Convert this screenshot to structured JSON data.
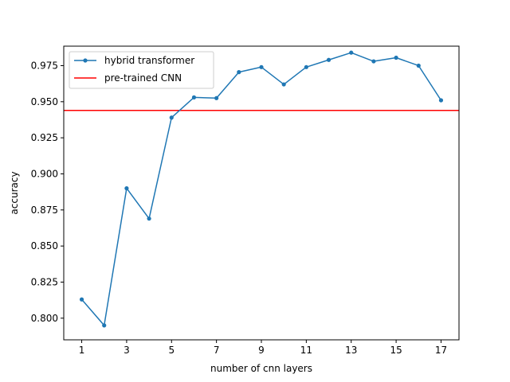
{
  "chart_data": {
    "type": "line",
    "title": "",
    "xlabel": "number of cnn layers",
    "ylabel": "accuracy",
    "xlim": [
      0.2,
      17.8
    ],
    "ylim": [
      0.785,
      0.9885
    ],
    "xticks": [
      1,
      3,
      5,
      7,
      9,
      11,
      13,
      15,
      17
    ],
    "yticks": [
      0.8,
      0.825,
      0.85,
      0.875,
      0.9,
      0.925,
      0.95,
      0.975
    ],
    "ytick_labels": [
      "0.800",
      "0.825",
      "0.850",
      "0.875",
      "0.900",
      "0.925",
      "0.950",
      "0.975"
    ],
    "grid": false,
    "legend_position": "upper-left",
    "series": [
      {
        "name": "hybrid transformer",
        "kind": "line-markers",
        "color": "#1f77b4",
        "x": [
          1,
          2,
          3,
          4,
          5,
          6,
          7,
          8,
          9,
          10,
          11,
          12,
          13,
          14,
          15,
          16,
          17
        ],
        "values": [
          0.813,
          0.795,
          0.89,
          0.869,
          0.939,
          0.953,
          0.9525,
          0.9705,
          0.974,
          0.962,
          0.974,
          0.979,
          0.984,
          0.978,
          0.9805,
          0.975,
          0.951
        ]
      },
      {
        "name": "pre-trained CNN",
        "kind": "hline",
        "color": "#ff0000",
        "y": 0.944
      }
    ]
  }
}
